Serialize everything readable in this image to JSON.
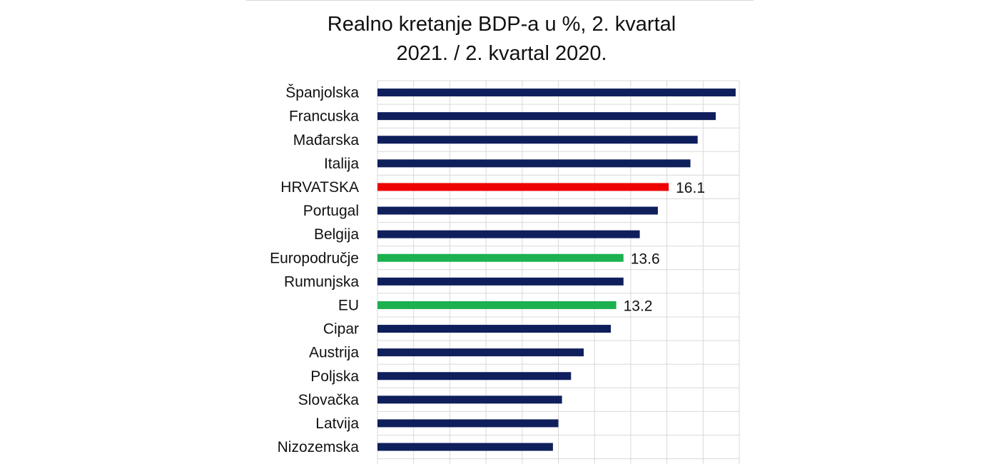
{
  "chart_data": {
    "type": "bar",
    "orientation": "horizontal",
    "title_lines": [
      "Realno kretanje BDP-a u %, 2. kvartal",
      "2021. / 2. kvartal 2020."
    ],
    "categories": [
      "Španjolska",
      "Francuska",
      "Mađarska",
      "Italija",
      "HRVATSKA",
      "Portugal",
      "Belgija",
      "Europodručje",
      "Rumunjska",
      "EU",
      "Cipar",
      "Austrija",
      "Poljska",
      "Slovačka",
      "Latvija",
      "Nizozemska"
    ],
    "values": [
      19.8,
      18.7,
      17.7,
      17.3,
      16.1,
      15.5,
      14.5,
      13.6,
      13.6,
      13.2,
      12.9,
      11.4,
      10.7,
      10.2,
      10.0,
      9.7
    ],
    "data_labels": {
      "4": "16.1",
      "7": "13.6",
      "9": "13.2"
    },
    "colors": {
      "default": "#0f1f5c",
      "HRVATSKA": "#ee0000",
      "Europodručje": "#1db04f",
      "EU": "#1db04f"
    },
    "xlim": [
      0,
      20
    ],
    "grid": true,
    "grid_step": 2,
    "axis_tick_labels_visible": false
  }
}
